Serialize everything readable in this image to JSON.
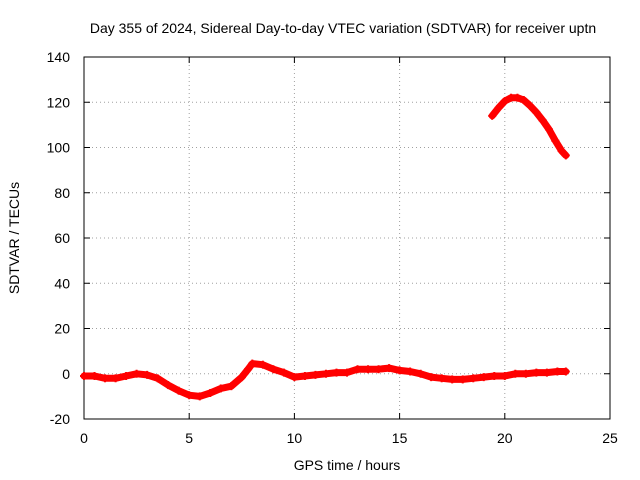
{
  "chart_data": {
    "type": "scatter",
    "title": "Day 355 of 2024, Sidereal Day-to-day VTEC variation (SDTVAR) for receiver uptn",
    "xlabel": "GPS time / hours",
    "ylabel": "SDTVAR / TECUs",
    "xlim": [
      0,
      25
    ],
    "ylim": [
      -20,
      140
    ],
    "xticks": [
      0,
      5,
      10,
      15,
      20,
      25
    ],
    "yticks": [
      -20,
      0,
      20,
      40,
      60,
      80,
      100,
      120,
      140
    ],
    "grid": true,
    "series_color": "#ff0000",
    "series": [
      {
        "name": "SDTVAR",
        "segments": [
          [
            [
              0.0,
              -1
            ],
            [
              0.5,
              -1
            ],
            [
              1.0,
              -2
            ],
            [
              1.5,
              -2
            ],
            [
              2.0,
              -1
            ],
            [
              2.5,
              0
            ],
            [
              3.0,
              -0.5
            ],
            [
              3.5,
              -2
            ],
            [
              4.0,
              -5
            ],
            [
              4.5,
              -7.5
            ],
            [
              5.0,
              -9.5
            ],
            [
              5.5,
              -10
            ],
            [
              6.0,
              -8.5
            ],
            [
              6.5,
              -6.5
            ],
            [
              7.0,
              -5.5
            ],
            [
              7.5,
              -1.5
            ],
            [
              7.8,
              2
            ],
            [
              8.0,
              4.5
            ],
            [
              8.5,
              4
            ],
            [
              9.0,
              2
            ],
            [
              9.5,
              0.5
            ],
            [
              10.0,
              -1.5
            ],
            [
              10.5,
              -1
            ],
            [
              11.0,
              -0.5
            ],
            [
              11.5,
              0
            ],
            [
              12.0,
              0.5
            ],
            [
              12.5,
              0.5
            ],
            [
              13.0,
              2
            ],
            [
              13.5,
              2
            ],
            [
              14.0,
              2
            ],
            [
              14.5,
              2.5
            ],
            [
              15.0,
              1.5
            ],
            [
              15.5,
              1
            ],
            [
              16.0,
              0
            ],
            [
              16.5,
              -1.5
            ],
            [
              17.0,
              -2
            ],
            [
              17.5,
              -2.5
            ],
            [
              18.0,
              -2.5
            ],
            [
              18.5,
              -2
            ],
            [
              19.0,
              -1.5
            ],
            [
              19.5,
              -1
            ],
            [
              20.0,
              -1
            ],
            [
              20.5,
              0
            ],
            [
              21.0,
              0
            ],
            [
              21.5,
              0.5
            ],
            [
              22.0,
              0.5
            ],
            [
              22.5,
              1
            ],
            [
              22.9,
              1
            ]
          ],
          [
            [
              19.4,
              114
            ],
            [
              19.7,
              117.5
            ],
            [
              20.0,
              120.5
            ],
            [
              20.3,
              122
            ],
            [
              20.6,
              122
            ],
            [
              20.9,
              121
            ],
            [
              21.2,
              118.5
            ],
            [
              21.5,
              115.5
            ],
            [
              21.8,
              112
            ],
            [
              22.1,
              108
            ],
            [
              22.4,
              103
            ],
            [
              22.7,
              98.5
            ],
            [
              22.9,
              96.5
            ]
          ]
        ]
      }
    ]
  }
}
